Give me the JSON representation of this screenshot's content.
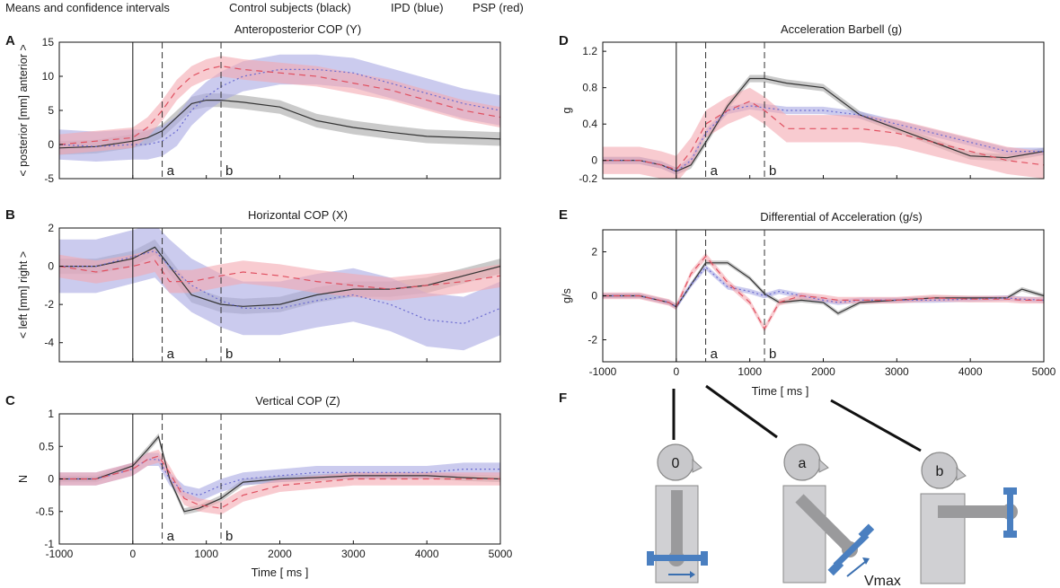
{
  "header": {
    "means": "Means and confidence intervals",
    "control": "Control subjects (black)",
    "ipd": "IPD (blue)",
    "psp": "PSP (red)"
  },
  "colors": {
    "control": "#333333",
    "ipd": "#6b6bd0",
    "psp": "#e05060",
    "ipd_band": "#a9a9e3",
    "psp_band": "#f4a9b1",
    "ctl_band": "#a6a6a6"
  },
  "markers": {
    "a": "a",
    "b": "b",
    "a_ms": 400,
    "b_ms": 1200
  },
  "time_label": "Time [ ms ]",
  "figure_f": {
    "label": "F",
    "fig0": "0",
    "figa": "a",
    "figb": "b",
    "vmax": "Vmax"
  },
  "chart_data": [
    {
      "id": "A",
      "type": "line",
      "title": "Anteroposterior COP (Y)",
      "ylabel": "< posterior [mm] anterior >",
      "xlim": [
        -1000,
        5000
      ],
      "ylim": [
        -5,
        15
      ],
      "xticks": [
        -1000,
        0,
        1000,
        2000,
        3000,
        4000,
        5000
      ],
      "yticks": [
        -5,
        0,
        5,
        10,
        15
      ],
      "xticklabels_shown": false,
      "series": [
        {
          "name": "Control",
          "x": [
            -1000,
            -500,
            0,
            200,
            400,
            600,
            800,
            1000,
            1200,
            1500,
            2000,
            2500,
            3000,
            3500,
            4000,
            4500,
            5000
          ],
          "y": [
            -0.5,
            -0.3,
            0.5,
            1,
            2,
            4,
            6,
            6.5,
            6.5,
            6.2,
            5.5,
            3.5,
            2.5,
            1.8,
            1.2,
            1,
            0.8
          ],
          "band": 1
        },
        {
          "name": "IPD",
          "x": [
            -1000,
            -500,
            0,
            200,
            400,
            600,
            800,
            1000,
            1200,
            1500,
            2000,
            2500,
            3000,
            3500,
            4000,
            4500,
            5000
          ],
          "y": [
            0,
            -0.3,
            0,
            0,
            0.5,
            2,
            5,
            7,
            8.5,
            10,
            11,
            11,
            10.5,
            9,
            7.5,
            6,
            5
          ],
          "band": 2.2
        },
        {
          "name": "PSP",
          "x": [
            -1000,
            -500,
            0,
            200,
            400,
            600,
            800,
            1000,
            1200,
            1500,
            2000,
            2500,
            3000,
            3500,
            4000,
            4500,
            5000
          ],
          "y": [
            0,
            0.5,
            1,
            2.5,
            5,
            8,
            10,
            11,
            11.5,
            11,
            10.5,
            10,
            9,
            8,
            6.5,
            5,
            4
          ],
          "band": 1.5
        }
      ]
    },
    {
      "id": "B",
      "type": "line",
      "title": "Horizontal COP (X)",
      "ylabel": "< left [mm] right >",
      "xlim": [
        -1000,
        5000
      ],
      "ylim": [
        -5,
        2
      ],
      "xticks": [
        -1000,
        0,
        1000,
        2000,
        3000,
        4000,
        5000
      ],
      "yticks": [
        -4,
        -2,
        0,
        2
      ],
      "xticklabels_shown": false,
      "series": [
        {
          "name": "Control",
          "x": [
            -1000,
            -500,
            0,
            300,
            500,
            800,
            1200,
            1500,
            2000,
            2500,
            3000,
            3500,
            4000,
            4500,
            5000
          ],
          "y": [
            0,
            0,
            0.4,
            1,
            0,
            -1.5,
            -2,
            -2.1,
            -2,
            -1.5,
            -1.2,
            -1.2,
            -1,
            -0.5,
            0
          ],
          "band": 0.4
        },
        {
          "name": "IPD",
          "x": [
            -1000,
            -500,
            0,
            300,
            500,
            800,
            1200,
            1500,
            2000,
            2500,
            3000,
            3500,
            4000,
            4500,
            5000
          ],
          "y": [
            0,
            0,
            0.5,
            0.8,
            0,
            -1,
            -1.8,
            -2.2,
            -2.2,
            -1.8,
            -1.5,
            -2,
            -2.8,
            -3,
            -2.2
          ],
          "band": 1.4
        },
        {
          "name": "PSP",
          "x": [
            -1000,
            -500,
            0,
            300,
            500,
            800,
            1200,
            1500,
            2000,
            2500,
            3000,
            3500,
            4000,
            4500,
            5000
          ],
          "y": [
            0,
            -0.3,
            0,
            0.3,
            -0.8,
            -0.8,
            -0.5,
            -0.3,
            -0.5,
            -0.8,
            -1,
            -1.2,
            -1,
            -0.8,
            -0.5
          ],
          "band": 0.6
        }
      ]
    },
    {
      "id": "C",
      "type": "line",
      "title": "Vertical COP (Z)",
      "ylabel": "N",
      "xlabel": "Time [ ms ]",
      "xlim": [
        -1000,
        5000
      ],
      "ylim": [
        -1,
        1
      ],
      "xticks": [
        -1000,
        0,
        1000,
        2000,
        3000,
        4000,
        5000
      ],
      "yticks": [
        -1,
        -0.5,
        0,
        0.5,
        1
      ],
      "xticklabels_shown": true,
      "series": [
        {
          "name": "Control",
          "x": [
            -1000,
            -500,
            0,
            200,
            350,
            500,
            700,
            900,
            1200,
            1500,
            2000,
            2500,
            3000,
            3500,
            4000,
            4500,
            5000
          ],
          "y": [
            0,
            0,
            0.2,
            0.45,
            0.65,
            0,
            -0.5,
            -0.45,
            -0.3,
            -0.05,
            0,
            0.02,
            0.05,
            0.05,
            0.05,
            0.02,
            0
          ],
          "band": 0.05
        },
        {
          "name": "IPD",
          "x": [
            -1000,
            -500,
            0,
            200,
            350,
            500,
            700,
            900,
            1200,
            1500,
            2000,
            2500,
            3000,
            3500,
            4000,
            4500,
            5000
          ],
          "y": [
            0,
            0,
            0.15,
            0.3,
            0.3,
            0,
            -0.2,
            -0.25,
            -0.1,
            0,
            0.05,
            0.1,
            0.1,
            0.1,
            0.1,
            0.15,
            0.15
          ],
          "band": 0.1
        },
        {
          "name": "PSP",
          "x": [
            -1000,
            -500,
            0,
            200,
            350,
            500,
            700,
            900,
            1200,
            1500,
            2000,
            2500,
            3000,
            3500,
            4000,
            4500,
            5000
          ],
          "y": [
            0,
            0,
            0.15,
            0.3,
            0.35,
            0.1,
            -0.3,
            -0.4,
            -0.45,
            -0.25,
            -0.1,
            -0.05,
            0,
            0,
            0,
            0,
            0
          ],
          "band": 0.1
        }
      ]
    },
    {
      "id": "D",
      "type": "line",
      "title": "Acceleration Barbell (g)",
      "ylabel": "g",
      "xlim": [
        -1000,
        5000
      ],
      "ylim": [
        -0.2,
        1.3
      ],
      "xticks": [
        -1000,
        0,
        1000,
        2000,
        3000,
        4000,
        5000
      ],
      "yticks": [
        -0.2,
        0,
        0.4,
        0.8,
        1.2
      ],
      "xticklabels_shown": false,
      "series": [
        {
          "name": "Control",
          "x": [
            -1000,
            -500,
            -200,
            0,
            200,
            400,
            700,
            1000,
            1200,
            1500,
            2000,
            2500,
            3000,
            3500,
            4000,
            4500,
            5000
          ],
          "y": [
            0,
            0,
            -0.05,
            -0.12,
            -0.05,
            0.2,
            0.6,
            0.9,
            0.9,
            0.85,
            0.8,
            0.5,
            0.35,
            0.2,
            0.05,
            0.03,
            0.1
          ],
          "band": 0.04
        },
        {
          "name": "IPD",
          "x": [
            -1000,
            -500,
            -200,
            0,
            200,
            400,
            700,
            1000,
            1200,
            1500,
            2000,
            2500,
            3000,
            3500,
            4000,
            4500,
            5000
          ],
          "y": [
            0,
            0,
            -0.05,
            -0.12,
            0,
            0.3,
            0.55,
            0.6,
            0.58,
            0.55,
            0.55,
            0.5,
            0.4,
            0.3,
            0.2,
            0.1,
            0.1
          ],
          "band": 0.04
        },
        {
          "name": "PSP",
          "x": [
            -1000,
            -500,
            -200,
            0,
            200,
            400,
            700,
            1000,
            1200,
            1500,
            2000,
            2500,
            3000,
            3500,
            4000,
            4500,
            5000
          ],
          "y": [
            0,
            0,
            -0.05,
            -0.1,
            0.1,
            0.4,
            0.55,
            0.65,
            0.55,
            0.35,
            0.35,
            0.35,
            0.3,
            0.2,
            0.1,
            0,
            -0.05
          ],
          "band": 0.15
        }
      ]
    },
    {
      "id": "E",
      "type": "line",
      "title": "Differential of Acceleration (g/s)",
      "ylabel": "g/s",
      "xlabel": "Time [ ms ]",
      "xlim": [
        -1000,
        5000
      ],
      "ylim": [
        -3,
        3
      ],
      "xticks": [
        -1000,
        0,
        1000,
        2000,
        3000,
        4000,
        5000
      ],
      "yticks": [
        -2,
        0,
        2
      ],
      "xticklabels_shown": true,
      "series": [
        {
          "name": "Control",
          "x": [
            -1000,
            -500,
            -100,
            0,
            200,
            400,
            700,
            1000,
            1200,
            1400,
            1700,
            2000,
            2200,
            2500,
            3000,
            3500,
            4000,
            4500,
            4700,
            5000
          ],
          "y": [
            0,
            0,
            -0.3,
            -0.5,
            0.5,
            1.5,
            1.5,
            0.8,
            0.1,
            -0.3,
            -0.2,
            -0.3,
            -0.8,
            -0.3,
            -0.2,
            -0.1,
            -0.1,
            -0.1,
            0.3,
            0
          ],
          "band": 0.1
        },
        {
          "name": "IPD",
          "x": [
            -1000,
            -500,
            -100,
            0,
            200,
            400,
            700,
            1000,
            1200,
            1400,
            1700,
            2000,
            2200,
            2500,
            3000,
            3500,
            4000,
            4500,
            4700,
            5000
          ],
          "y": [
            0,
            0,
            -0.3,
            -0.5,
            0.5,
            1.3,
            0.4,
            0.2,
            0,
            0.2,
            0,
            -0.2,
            -0.3,
            -0.2,
            -0.2,
            -0.2,
            -0.15,
            -0.1,
            -0.15,
            -0.2
          ],
          "band": 0.12
        },
        {
          "name": "PSP",
          "x": [
            -1000,
            -500,
            -100,
            0,
            200,
            400,
            700,
            1000,
            1200,
            1400,
            1700,
            2000,
            2200,
            2500,
            3000,
            3500,
            4000,
            4500,
            4700,
            5000
          ],
          "y": [
            0,
            0,
            -0.3,
            -0.5,
            1,
            1.8,
            0.6,
            -0.3,
            -1.5,
            -0.3,
            0,
            -0.1,
            -0.2,
            -0.2,
            -0.2,
            -0.1,
            -0.15,
            -0.15,
            -0.2,
            -0.2
          ],
          "band": 0.15
        }
      ]
    }
  ]
}
